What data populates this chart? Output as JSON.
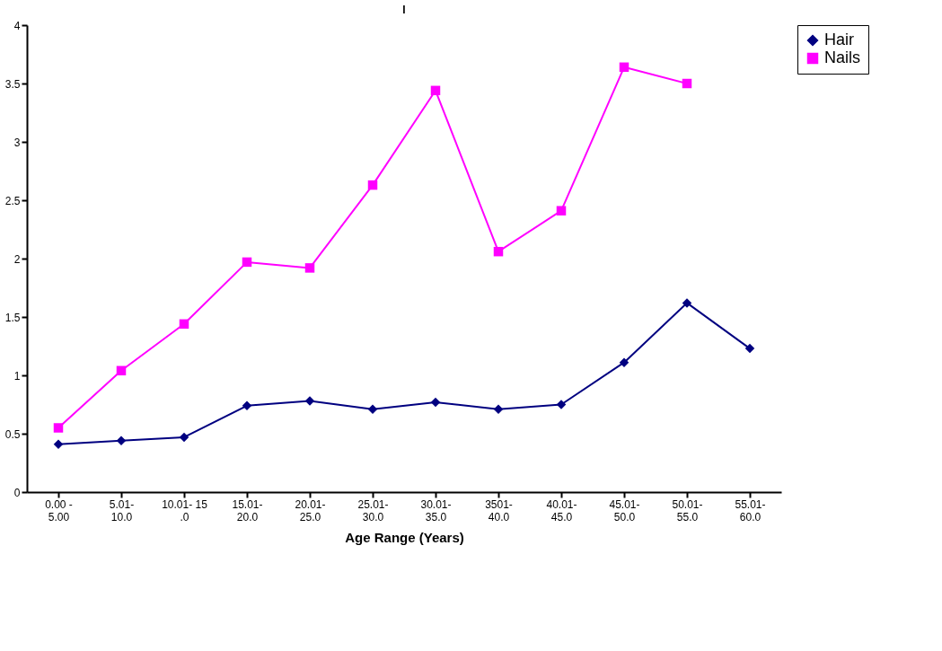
{
  "chart_data": {
    "type": "line",
    "title": "I",
    "xlabel": "Age Range (Years)",
    "categories": [
      "0.00 - 5.00",
      "5.01- 10.0",
      "10.01- 15 .0",
      "15.01- 20.0",
      "20.01- 25.0",
      "25.01- 30.0",
      "30.01- 35.0",
      "3501- 40.0",
      "40.01- 45.0",
      "45.01- 50.0",
      "50.01- 55.0",
      "55.01- 60.0"
    ],
    "series": [
      {
        "name": "Hair",
        "color": "#000080",
        "marker": "diamond",
        "values": [
          0.41,
          0.44,
          0.47,
          0.74,
          0.78,
          0.71,
          0.77,
          0.71,
          0.75,
          1.11,
          1.62,
          1.23
        ]
      },
      {
        "name": "Nails",
        "color": "#ff00ff",
        "marker": "square",
        "values": [
          0.55,
          1.04,
          1.44,
          1.97,
          1.92,
          2.63,
          3.44,
          2.06,
          2.41,
          3.64,
          3.5,
          null
        ]
      }
    ],
    "ylim": [
      0,
      4
    ],
    "yticks": [
      0,
      0.5,
      1,
      1.5,
      2,
      2.5,
      3,
      3.5,
      4
    ],
    "grid": false,
    "legend": "right",
    "line_style": "solid"
  }
}
